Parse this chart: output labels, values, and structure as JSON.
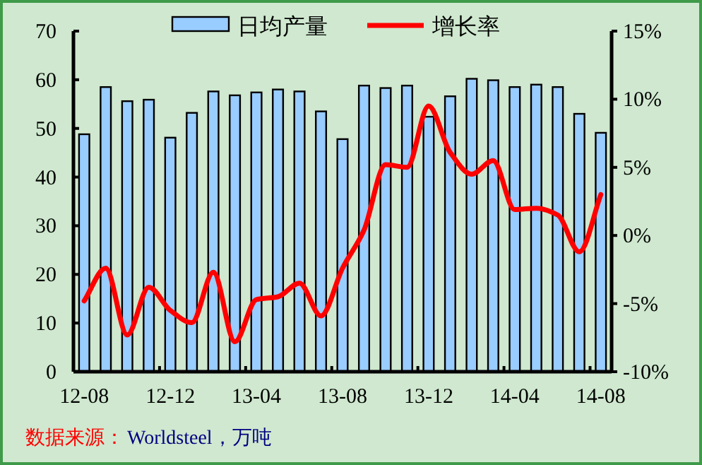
{
  "chart_data": {
    "type": "bar",
    "categories": [
      "12-08",
      null,
      null,
      null,
      "12-12",
      null,
      null,
      null,
      "13-04",
      null,
      null,
      null,
      "13-08",
      null,
      null,
      null,
      "13-12",
      null,
      null,
      null,
      "14-04",
      null,
      null,
      null,
      "14-08"
    ],
    "series": [
      {
        "name": "日均产量",
        "color": "#99ccff",
        "values": [
          48.8,
          58.5,
          55.6,
          55.9,
          48.1,
          53.2,
          57.6,
          56.8,
          57.4,
          58.0,
          57.6,
          53.5,
          47.8,
          58.8,
          58.3,
          58.8,
          52.4,
          56.6,
          60.2,
          59.9,
          58.5,
          59.0,
          58.5,
          53.0,
          49.1
        ]
      },
      {
        "name": "增长率",
        "type": "line",
        "axis": "y2",
        "color": "#ff0000",
        "values": [
          -4.8,
          -2.4,
          -7.3,
          -3.8,
          -5.5,
          -6.4,
          -2.7,
          -7.8,
          -4.7,
          -4.5,
          -3.5,
          -5.9,
          -2.4,
          0.4,
          5.2,
          5.0,
          9.5,
          6.1,
          4.5,
          5.5,
          1.9,
          2.0,
          1.5,
          -1.2,
          3.0
        ]
      }
    ],
    "ylim": [
      0,
      70
    ],
    "yticks": [
      0,
      10,
      20,
      30,
      40,
      50,
      60,
      70
    ],
    "y2lim": [
      -10,
      15
    ],
    "y2ticks": [
      {
        "value": -10,
        "label": "-10%"
      },
      {
        "value": -5,
        "label": "-5%"
      },
      {
        "value": 0,
        "label": "0%"
      },
      {
        "value": 5,
        "label": "5%"
      },
      {
        "value": 10,
        "label": "10%"
      },
      {
        "value": 15,
        "label": "15%"
      }
    ],
    "legend": "top",
    "grid": false,
    "annotations": [
      "数据来源：",
      "Worldsteel，万吨"
    ]
  }
}
